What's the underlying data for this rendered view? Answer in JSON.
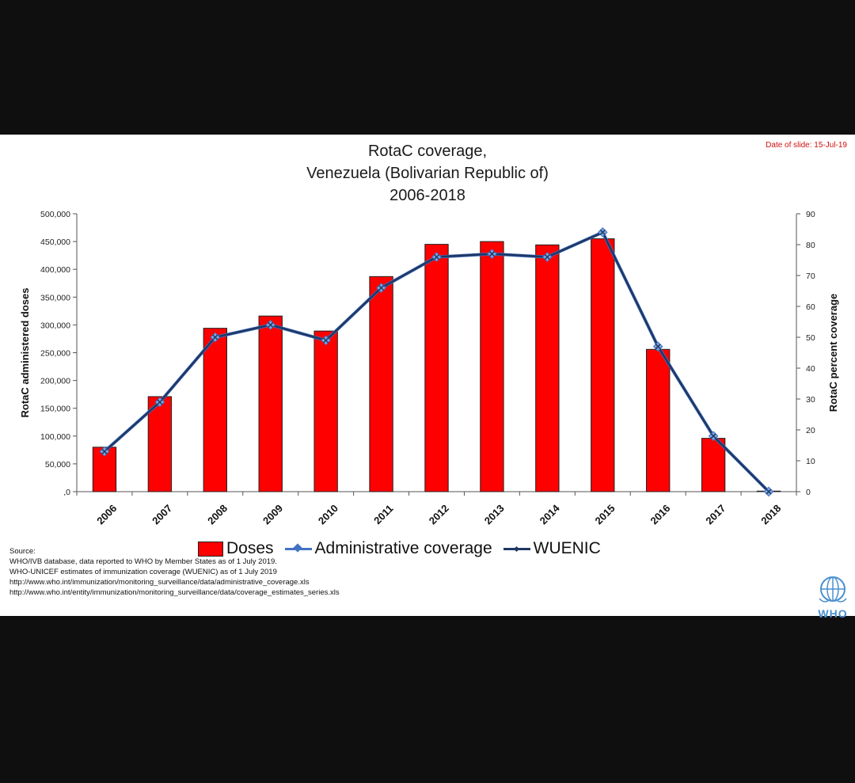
{
  "header": {
    "title_lines": [
      "RotaC coverage,",
      "Venezuela (Bolivarian  Republic of)",
      "2006-2018"
    ],
    "date_label": "Date of slide: 15-Jul-19"
  },
  "legend": {
    "doses": "Doses",
    "admin": "Administrative coverage",
    "wuenic": "WUENIC"
  },
  "source": {
    "heading": "Source:",
    "lines": [
      "WHO/IVB database, data reported to WHO by Member States as of 1 July 2019.",
      "WHO-UNICEF estimates of immunization coverage (WUENIC) as of 1 July 2019",
      "http://www.who.int/immunization/monitoring_surveillance/data/administrative_coverage.xls",
      "http://www.who.int/entity/immunization/monitoring_surveillance/data/coverage_estimates_series.xls"
    ]
  },
  "logo": {
    "text": "WHO"
  },
  "colors": {
    "bar": "#ff0000",
    "admin_line": "#4472c4",
    "wuenic_line": "#1f3864"
  },
  "chart_data": {
    "type": "bar",
    "title": "RotaC coverage, Venezuela (Bolivarian  Republic of) 2006-2018",
    "categories": [
      "2006",
      "2007",
      "2008",
      "2009",
      "2010",
      "2011",
      "2012",
      "2013",
      "2014",
      "2015",
      "2016",
      "2017",
      "2018"
    ],
    "ylabel": "RotaC administered doses",
    "y2label": "RotaC percent coverage",
    "ylim": [
      0,
      500000
    ],
    "y2lim": [
      0,
      90
    ],
    "yticks": [
      0,
      50000,
      100000,
      150000,
      200000,
      250000,
      300000,
      350000,
      400000,
      450000,
      500000
    ],
    "ytick_labels": [
      ",0",
      "50,000",
      "100,000",
      "150,000",
      "200,000",
      "250,000",
      "300,000",
      "350,000",
      "400,000",
      "450,000",
      "500,000"
    ],
    "y2ticks": [
      0,
      10,
      20,
      30,
      40,
      50,
      60,
      70,
      80,
      90
    ],
    "grid": false,
    "legend_position": "bottom",
    "series": [
      {
        "name": "Doses",
        "type": "bar",
        "axis": "left",
        "values": [
          80000,
          171000,
          294000,
          316000,
          289000,
          387000,
          445000,
          450000,
          444000,
          455000,
          256000,
          96000,
          1000
        ]
      },
      {
        "name": "Administrative coverage",
        "type": "line",
        "axis": "right",
        "values": [
          13,
          29,
          50,
          54,
          49,
          66,
          76,
          77,
          76,
          84,
          47,
          18,
          0
        ]
      },
      {
        "name": "WUENIC",
        "type": "line",
        "axis": "right",
        "values": [
          13,
          29,
          50,
          54,
          49,
          66,
          76,
          77,
          76,
          84,
          47,
          18,
          0
        ]
      }
    ]
  }
}
